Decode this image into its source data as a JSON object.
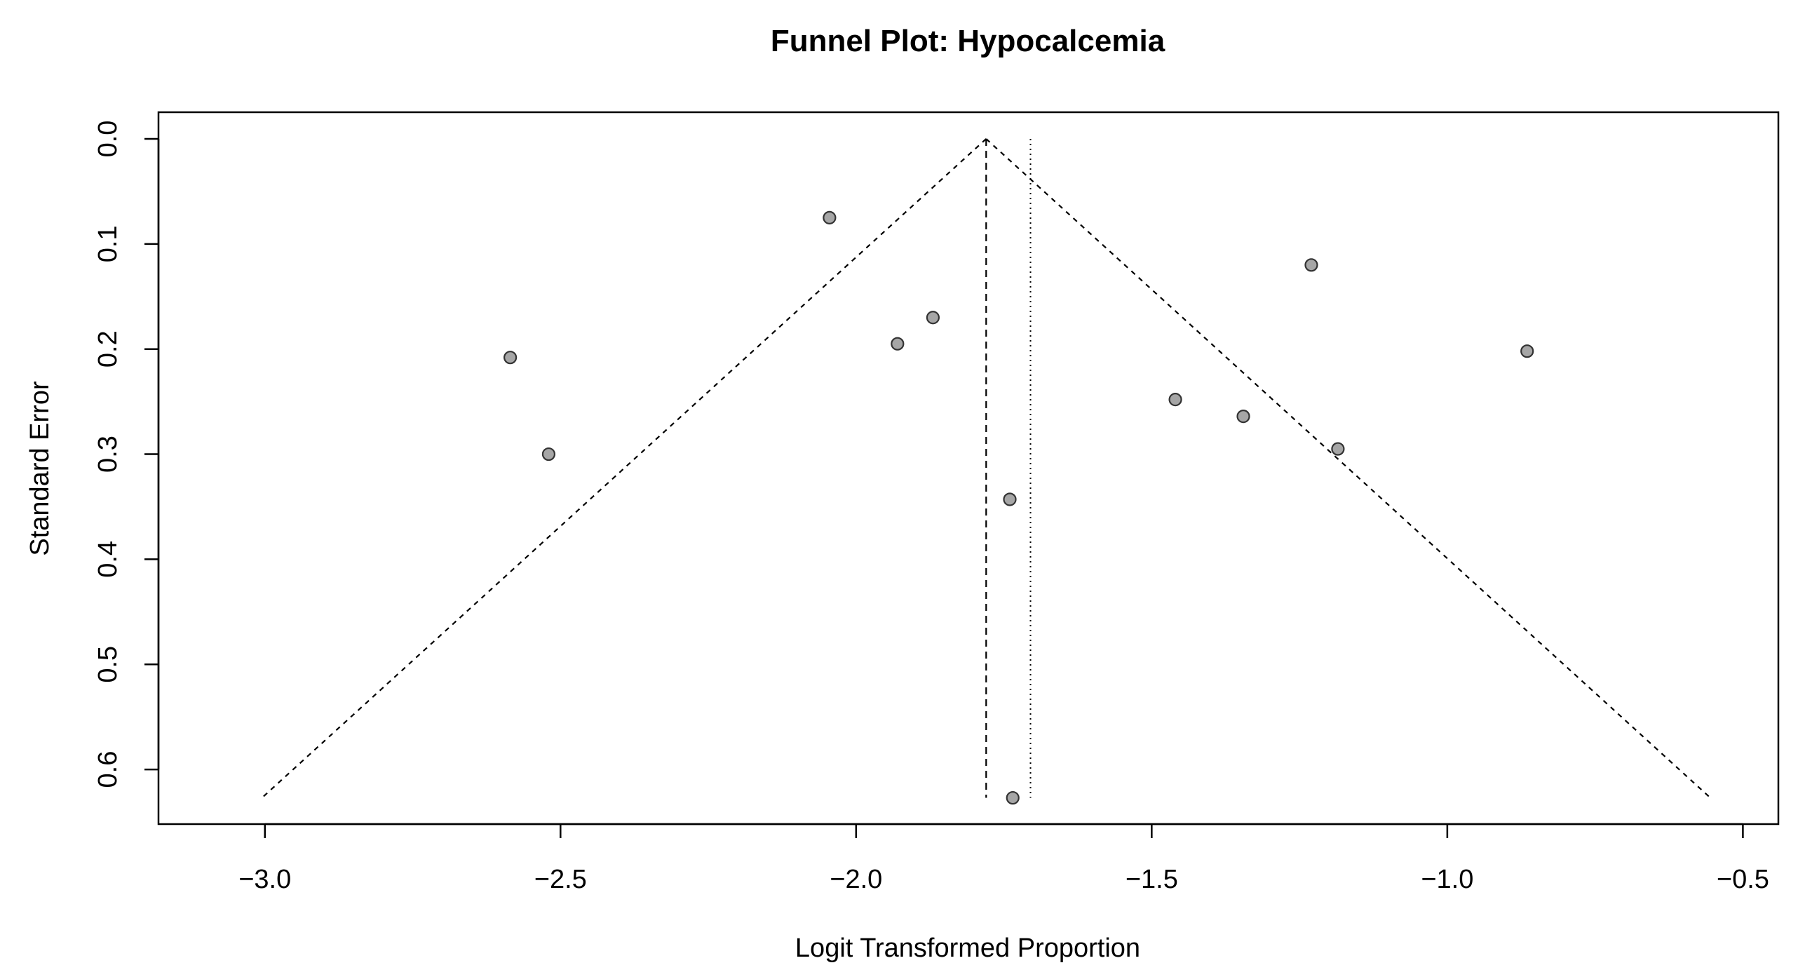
{
  "chart_data": {
    "type": "scatter",
    "title": "Funnel Plot: Hypocalcemia",
    "xlabel": "Logit Transformed Proportion",
    "ylabel": "Standard Error",
    "xlim": [
      -3.18,
      -0.44
    ],
    "ylim": [
      0.0,
      0.652
    ],
    "y_reversed": true,
    "x_ticks": [
      -3.0,
      -2.5,
      -2.0,
      -1.5,
      -1.0,
      -0.5
    ],
    "x_tick_labels": [
      "−3.0",
      "−2.5",
      "−2.0",
      "−1.5",
      "−1.0",
      "−0.5"
    ],
    "y_ticks": [
      0.0,
      0.1,
      0.2,
      0.3,
      0.4,
      0.5,
      0.6
    ],
    "y_tick_labels": [
      "0.0",
      "0.1",
      "0.2",
      "0.3",
      "0.4",
      "0.5",
      "0.6"
    ],
    "pooled_estimate_fixed": -1.78,
    "pooled_estimate_random": -1.705,
    "funnel": {
      "apex_x": -1.78,
      "apex_se": 0.0,
      "max_se": 0.627,
      "left_x_at_max": -3.005,
      "right_x_at_max": -0.555
    },
    "points": [
      {
        "x": -2.045,
        "y": 0.075
      },
      {
        "x": -2.585,
        "y": 0.208
      },
      {
        "x": -2.52,
        "y": 0.3
      },
      {
        "x": -1.93,
        "y": 0.195
      },
      {
        "x": -1.87,
        "y": 0.17
      },
      {
        "x": -1.74,
        "y": 0.343
      },
      {
        "x": -1.735,
        "y": 0.627
      },
      {
        "x": -1.46,
        "y": 0.248
      },
      {
        "x": -1.345,
        "y": 0.264
      },
      {
        "x": -1.23,
        "y": 0.12
      },
      {
        "x": -1.185,
        "y": 0.295
      },
      {
        "x": -0.865,
        "y": 0.202
      }
    ],
    "grid": false,
    "point_fill": "#a6a6a6",
    "point_stroke": "#333333"
  }
}
